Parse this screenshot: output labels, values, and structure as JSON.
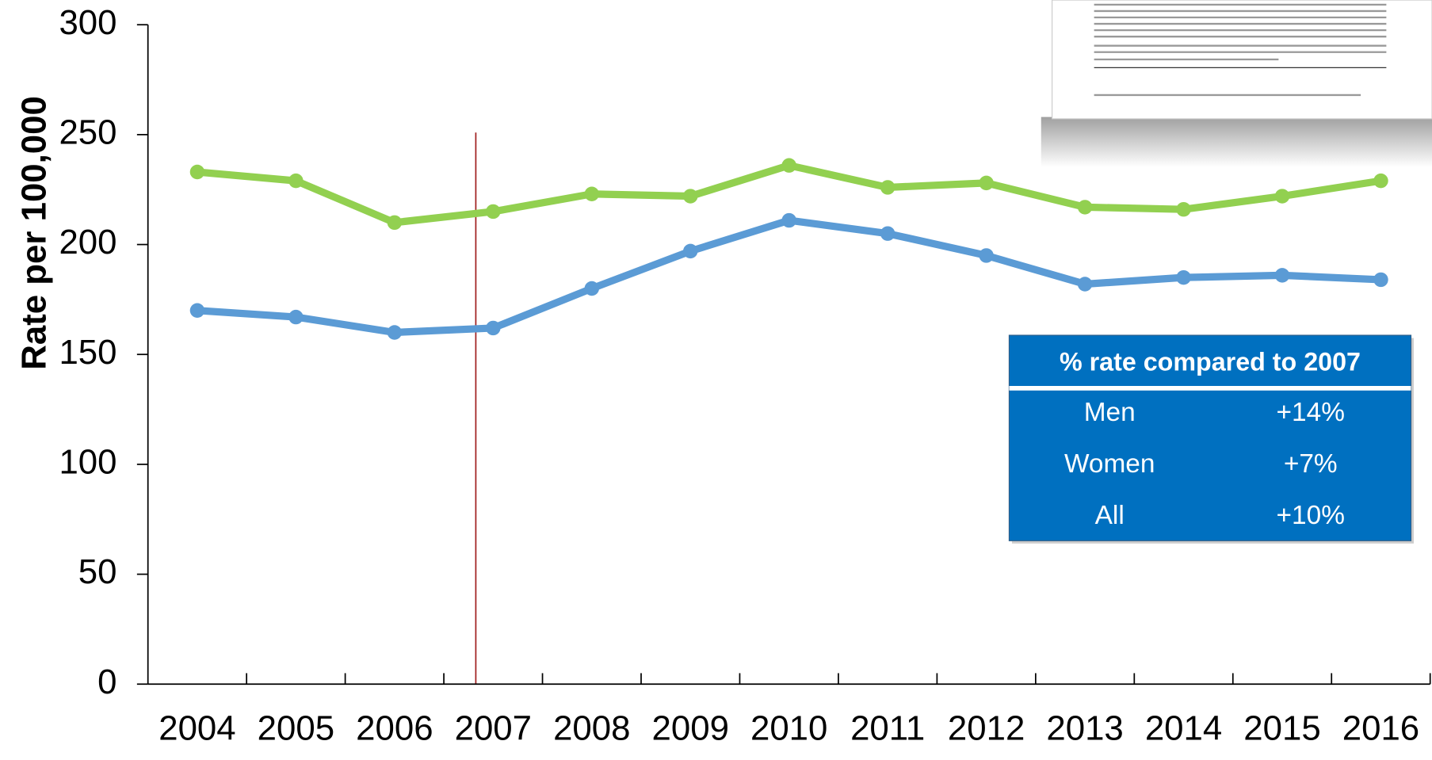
{
  "chart_data": {
    "type": "line",
    "ylabel": "Rate per 100,000",
    "categories": [
      "2004",
      "2005",
      "2006",
      "2007",
      "2008",
      "2009",
      "2010",
      "2011",
      "2012",
      "2013",
      "2014",
      "2015",
      "2016"
    ],
    "series": [
      {
        "color": "#92d050",
        "values": [
          233,
          229,
          210,
          215,
          223,
          222,
          236,
          226,
          228,
          217,
          216,
          222,
          229
        ]
      },
      {
        "color": "#5b9bd5",
        "values": [
          170,
          167,
          160,
          162,
          180,
          197,
          211,
          205,
          195,
          182,
          185,
          186,
          184
        ]
      }
    ],
    "ylim": [
      0,
      300
    ],
    "yticks": [
      0,
      50,
      100,
      150,
      200,
      250,
      300
    ],
    "grid": false
  },
  "inset_table": {
    "title": "% rate compared to 2007",
    "rows": [
      [
        "Men",
        "+14%"
      ],
      [
        "Women",
        "+7%"
      ],
      [
        "All",
        "+10%"
      ]
    ]
  }
}
